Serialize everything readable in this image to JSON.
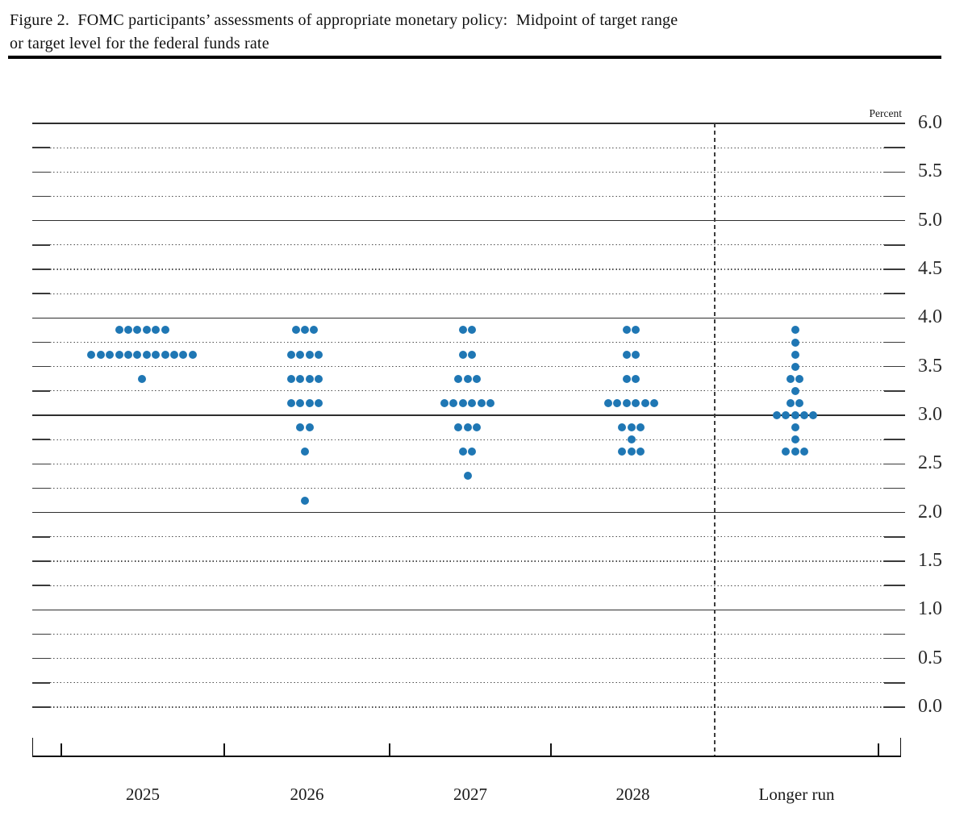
{
  "title": {
    "line1": "Figure 2.  FOMC participants’ assessments of appropriate monetary policy:  Midpoint of target range",
    "line2": "or target level for the federal funds rate"
  },
  "chart_data": {
    "type": "scatter",
    "subtype": "fomc-dot-plot",
    "title": "Figure 2. FOMC participants’ assessments of appropriate monetary policy: Midpoint of target range or target level for the federal funds rate",
    "unit_label": "Percent",
    "categories": [
      "2025",
      "2026",
      "2027",
      "2028",
      "Longer run"
    ],
    "y_axis": {
      "min": 0.0,
      "max": 6.0,
      "label_step": 0.5,
      "grid_step": 0.25,
      "solid_grid_at_integers": true,
      "tick_labels": [
        "6.0",
        "5.5",
        "5.0",
        "4.5",
        "4.0",
        "3.5",
        "3.0",
        "2.5",
        "2.0",
        "1.5",
        "1.0",
        "0.5",
        "0.0"
      ]
    },
    "series": [
      {
        "category": "2025",
        "dots": [
          {
            "rate": 3.875,
            "count": 6
          },
          {
            "rate": 3.625,
            "count": 12
          },
          {
            "rate": 3.375,
            "count": 1
          }
        ]
      },
      {
        "category": "2026",
        "dots": [
          {
            "rate": 3.875,
            "count": 3
          },
          {
            "rate": 3.625,
            "count": 4
          },
          {
            "rate": 3.375,
            "count": 4
          },
          {
            "rate": 3.125,
            "count": 4
          },
          {
            "rate": 2.875,
            "count": 2
          },
          {
            "rate": 2.625,
            "count": 1
          },
          {
            "rate": 2.125,
            "count": 1
          }
        ]
      },
      {
        "category": "2027",
        "dots": [
          {
            "rate": 3.875,
            "count": 2
          },
          {
            "rate": 3.625,
            "count": 2
          },
          {
            "rate": 3.375,
            "count": 3
          },
          {
            "rate": 3.125,
            "count": 6
          },
          {
            "rate": 2.875,
            "count": 3
          },
          {
            "rate": 2.625,
            "count": 2
          },
          {
            "rate": 2.375,
            "count": 1
          }
        ]
      },
      {
        "category": "2028",
        "dots": [
          {
            "rate": 3.875,
            "count": 2
          },
          {
            "rate": 3.625,
            "count": 2
          },
          {
            "rate": 3.375,
            "count": 2
          },
          {
            "rate": 3.125,
            "count": 6
          },
          {
            "rate": 2.875,
            "count": 3
          },
          {
            "rate": 2.75,
            "count": 1
          },
          {
            "rate": 2.625,
            "count": 3
          }
        ]
      },
      {
        "category": "Longer run",
        "dots": [
          {
            "rate": 3.875,
            "count": 1
          },
          {
            "rate": 3.75,
            "count": 1
          },
          {
            "rate": 3.625,
            "count": 1
          },
          {
            "rate": 3.5,
            "count": 1
          },
          {
            "rate": 3.375,
            "count": 2
          },
          {
            "rate": 3.25,
            "count": 1
          },
          {
            "rate": 3.125,
            "count": 2
          },
          {
            "rate": 3.0,
            "count": 5
          },
          {
            "rate": 2.875,
            "count": 1
          },
          {
            "rate": 2.75,
            "count": 1
          },
          {
            "rate": 2.625,
            "count": 3
          }
        ]
      }
    ],
    "layout_hints": {
      "grid": "dotted every 0.25, solid at whole percents",
      "dashed_separator_before": "Longer run",
      "unit_label_position": "top-right"
    },
    "colors": {
      "dot": "#1f77b4",
      "grid_solid": "#2e2e2e",
      "grid_dotted": "#4a4a4a",
      "axis": "#111111",
      "text": "#1a1a1a"
    }
  }
}
